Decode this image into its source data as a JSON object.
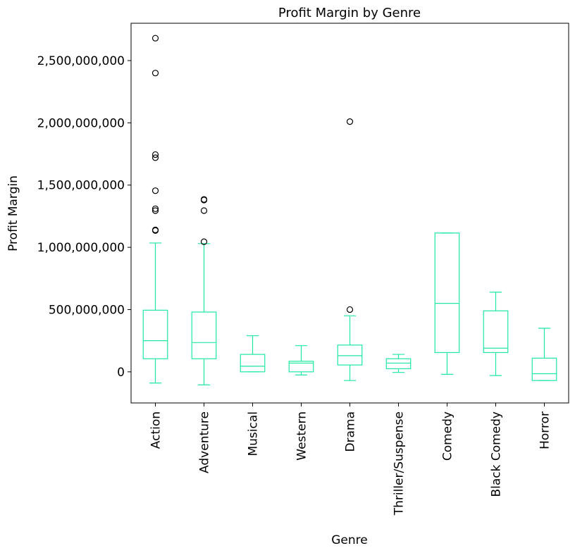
{
  "chart_data": {
    "type": "box",
    "title": "Profit Margin by Genre",
    "xlabel": "Genre",
    "ylabel": "Profit Margin",
    "ylim": [
      -250000000,
      2800000000
    ],
    "yticks": [
      0,
      500000000,
      1000000000,
      1500000000,
      2000000000,
      2500000000
    ],
    "ytick_labels": [
      "0",
      "500,000,000",
      "1,000,000,000",
      "1,500,000,000",
      "2,000,000,000",
      "2,500,000,000"
    ],
    "grid": false,
    "legend": "none",
    "box_color": "#1de9a0",
    "flier_color": "#000000",
    "categories": [
      "Action",
      "Adventure",
      "Musical",
      "Western",
      "Drama",
      "Thriller/Suspense",
      "Comedy",
      "Black Comedy",
      "Horror"
    ],
    "boxes": [
      {
        "whisker_low": -90000000,
        "q1": 105000000,
        "median": 250000000,
        "q3": 495000000,
        "whisker_high": 1035000000,
        "outliers": [
          2680000000,
          2400000000,
          1745000000,
          1720000000,
          1455000000,
          1310000000,
          1295000000,
          1140000000,
          1135000000
        ]
      },
      {
        "whisker_low": -105000000,
        "q1": 105000000,
        "median": 235000000,
        "q3": 480000000,
        "whisker_high": 1030000000,
        "outliers": [
          1385000000,
          1380000000,
          1295000000,
          1045000000
        ]
      },
      {
        "whisker_low": 0,
        "q1": 0,
        "median": 45000000,
        "q3": 140000000,
        "whisker_high": 290000000,
        "outliers": []
      },
      {
        "whisker_low": -25000000,
        "q1": 0,
        "median": 70000000,
        "q3": 85000000,
        "whisker_high": 210000000,
        "outliers": []
      },
      {
        "whisker_low": -70000000,
        "q1": 55000000,
        "median": 130000000,
        "q3": 215000000,
        "whisker_high": 450000000,
        "outliers": [
          2010000000,
          500000000
        ]
      },
      {
        "whisker_low": -5000000,
        "q1": 25000000,
        "median": 70000000,
        "q3": 105000000,
        "whisker_high": 140000000,
        "outliers": []
      },
      {
        "whisker_low": -20000000,
        "q1": 155000000,
        "median": 550000000,
        "q3": 1115000000,
        "whisker_high": 1115000000,
        "outliers": []
      },
      {
        "whisker_low": -30000000,
        "q1": 155000000,
        "median": 190000000,
        "q3": 490000000,
        "whisker_high": 640000000,
        "outliers": []
      },
      {
        "whisker_low": -70000000,
        "q1": -70000000,
        "median": -15000000,
        "q3": 110000000,
        "whisker_high": 350000000,
        "outliers": []
      }
    ]
  }
}
